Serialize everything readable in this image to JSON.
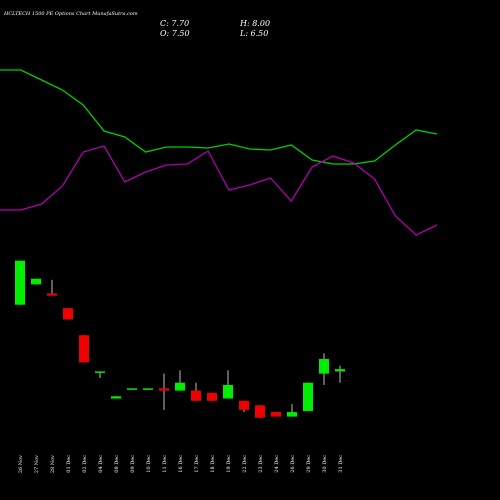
{
  "chart_data": [
    {
      "type": "line",
      "x": [
        0,
        1,
        2,
        3,
        4,
        5,
        6,
        7,
        8,
        9,
        10,
        11,
        12,
        13,
        14,
        15,
        16,
        17,
        18,
        19,
        20,
        21
      ],
      "xlim": [
        0,
        21
      ],
      "ylim": [
        0,
        100
      ],
      "series": [
        {
          "color": "#00d000",
          "values": [
            90,
            90,
            85,
            80,
            72.5,
            59.5,
            56.5,
            49,
            51.5,
            51.5,
            51,
            53,
            50.5,
            50,
            52.5,
            45,
            43,
            43,
            44.5,
            52.5,
            60,
            58
          ]
        },
        {
          "color": "#b000b0",
          "values": [
            20,
            20,
            23,
            32,
            49,
            52,
            34,
            39,
            42.5,
            43,
            49.5,
            30,
            32.5,
            36,
            24.5,
            41.5,
            47,
            43.5,
            35.5,
            17,
            7.5,
            12.5
          ]
        }
      ]
    },
    {
      "type": "candlestick",
      "title": "HCLTECH 1500 PE Options Chart MunafaSutra.com",
      "annotations": [
        "C: 7.70",
        "H: 8.00",
        "O: 7.50",
        "L: 6.50"
      ],
      "categories": [
        "26 Nov",
        "27 Nov",
        "28 Nov",
        "01 Dec",
        "02 Dec",
        "04 Dec",
        "08 Dec",
        "09 Dec",
        "10 Dec",
        "11 Dec",
        "16 Dec",
        "17 Dec",
        "18 Dec",
        "19 Dec",
        "22 Dec",
        "23 Dec",
        "24 Dec",
        "26 Dec",
        "29 Dec",
        "30 Dec",
        "31 Dec"
      ],
      "open": [
        13.4,
        15.2,
        14.4,
        13.1,
        10.7,
        7.4,
        5.1,
        6.0,
        6.0,
        6.0,
        5.8,
        5.8,
        5.6,
        5.1,
        4.9,
        4.5,
        3.9,
        3.5,
        4.0,
        7.3,
        7.5
      ],
      "high": [
        17.3,
        15.7,
        15.6,
        13.1,
        10.7,
        7.5,
        5.3,
        6.0,
        6.0,
        7.3,
        7.6,
        6.5,
        5.6,
        7.6,
        4.9,
        4.5,
        3.9,
        4.6,
        6.5,
        9.1,
        8.0
      ],
      "low": [
        13.4,
        15.2,
        14.2,
        12.1,
        8.3,
        6.9,
        5.1,
        6.0,
        6.0,
        4.1,
        5.8,
        4.9,
        4.9,
        5.1,
        3.9,
        3.4,
        3.5,
        3.5,
        4.0,
        6.3,
        6.5
      ],
      "close": [
        17.3,
        15.7,
        14.2,
        12.1,
        8.3,
        7.5,
        5.3,
        6.0,
        6.0,
        5.8,
        6.5,
        4.9,
        4.9,
        6.3,
        4.1,
        3.4,
        3.5,
        3.9,
        6.5,
        8.6,
        7.7
      ],
      "up_color": "#00ee00",
      "down_color": "#ee0000",
      "ylim": [
        3.2,
        17.8
      ]
    }
  ]
}
